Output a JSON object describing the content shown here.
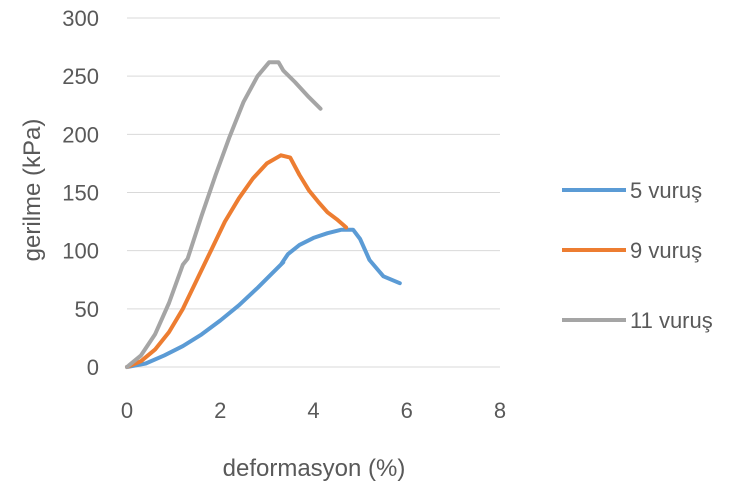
{
  "chart_data": {
    "type": "line",
    "xlabel": "deformasyon (%)",
    "ylabel": "gerilme (kPa)",
    "xlim": [
      0,
      8
    ],
    "ylim": [
      0,
      300
    ],
    "x_ticks": [
      0,
      2,
      4,
      6,
      8
    ],
    "x_tick_labels": [
      "0",
      "2",
      "4",
      "6",
      "8"
    ],
    "y_ticks": [
      0,
      50,
      100,
      150,
      200,
      250,
      300
    ],
    "y_tick_labels": [
      "0",
      "50",
      "100",
      "150",
      "200",
      "250",
      "300"
    ],
    "grid": "horizontal",
    "legend_position": "right",
    "series": [
      {
        "name": "5 vuruş",
        "color": "#5B9BD5",
        "points": [
          [
            0,
            0
          ],
          [
            0.4,
            3
          ],
          [
            0.8,
            10
          ],
          [
            1.2,
            18
          ],
          [
            1.6,
            28
          ],
          [
            2.0,
            40
          ],
          [
            2.4,
            53
          ],
          [
            2.8,
            68
          ],
          [
            3.1,
            80
          ],
          [
            3.35,
            90
          ],
          [
            3.3,
            88
          ],
          [
            3.45,
            97
          ],
          [
            3.7,
            105
          ],
          [
            4.0,
            111
          ],
          [
            4.3,
            115
          ],
          [
            4.6,
            118
          ],
          [
            4.85,
            118
          ],
          [
            5.0,
            110
          ],
          [
            5.2,
            92
          ],
          [
            5.5,
            78
          ],
          [
            5.85,
            72
          ]
        ]
      },
      {
        "name": "9 vuruş",
        "color": "#ED7D31",
        "points": [
          [
            0,
            0
          ],
          [
            0.3,
            5
          ],
          [
            0.6,
            15
          ],
          [
            0.9,
            30
          ],
          [
            1.2,
            50
          ],
          [
            1.5,
            75
          ],
          [
            1.8,
            100
          ],
          [
            2.1,
            125
          ],
          [
            2.4,
            145
          ],
          [
            2.7,
            162
          ],
          [
            3.0,
            175
          ],
          [
            3.3,
            182
          ],
          [
            3.5,
            180
          ],
          [
            3.7,
            165
          ],
          [
            3.9,
            152
          ],
          [
            4.1,
            142
          ],
          [
            4.3,
            133
          ],
          [
            4.5,
            127
          ],
          [
            4.7,
            120
          ]
        ]
      },
      {
        "name": "11 vuruş",
        "color": "#A5A5A5",
        "points": [
          [
            0,
            0
          ],
          [
            0.3,
            10
          ],
          [
            0.6,
            28
          ],
          [
            0.9,
            55
          ],
          [
            1.2,
            88
          ],
          [
            1.3,
            93
          ],
          [
            1.6,
            130
          ],
          [
            1.9,
            165
          ],
          [
            2.2,
            198
          ],
          [
            2.5,
            228
          ],
          [
            2.8,
            250
          ],
          [
            3.05,
            262
          ],
          [
            3.25,
            262
          ],
          [
            3.35,
            255
          ],
          [
            3.6,
            245
          ],
          [
            3.9,
            232
          ],
          [
            4.15,
            222
          ]
        ]
      }
    ]
  }
}
